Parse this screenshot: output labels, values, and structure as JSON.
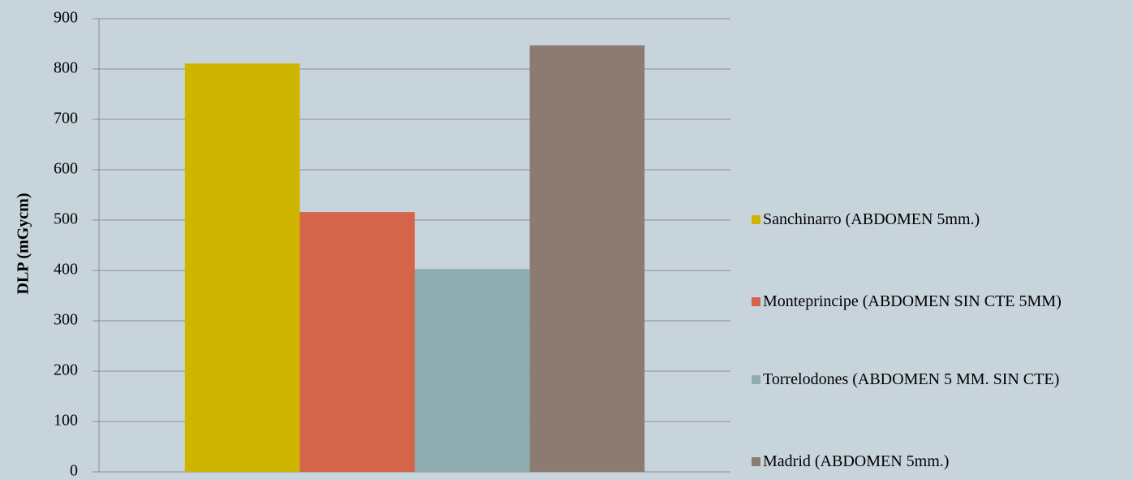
{
  "chart_data": {
    "type": "bar",
    "y_label": "DLP (mGycm)",
    "categories": [
      null
    ],
    "series": [
      {
        "name": "Sanchinarro (ABDOMEN 5mm.)",
        "color": "#cfb500",
        "values": [
          811
        ]
      },
      {
        "name": "Monteprincipe (ABDOMEN SIN CTE 5MM)",
        "color": "#d4654a",
        "values": [
          516
        ]
      },
      {
        "name": "Torrelodones (ABDOMEN 5 MM. SIN CTE)",
        "color": "#8fadb0",
        "values": [
          403
        ]
      },
      {
        "name": "Madrid (ABDOMEN 5mm.)",
        "color": "#8b7b70",
        "values": [
          847
        ]
      }
    ],
    "ylim": [
      0,
      900
    ],
    "yticks": [
      0,
      100,
      200,
      300,
      400,
      500,
      600,
      700,
      800,
      900
    ],
    "grid": true,
    "legend": "right"
  }
}
